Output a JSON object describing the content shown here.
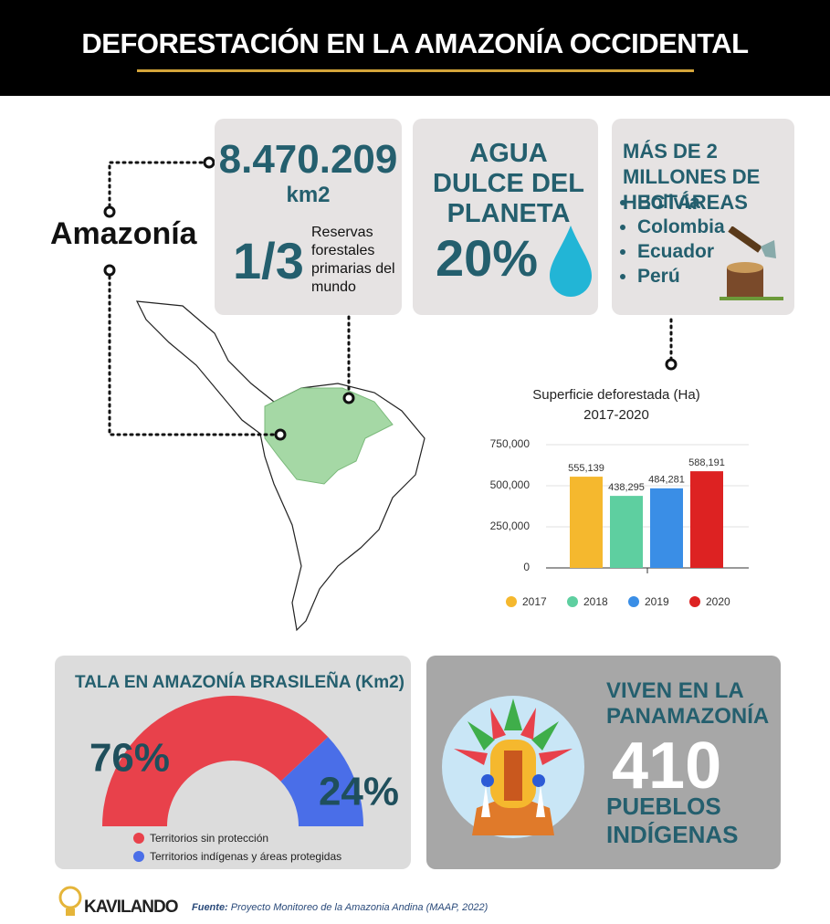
{
  "header": {
    "title": "DEFORESTACIÓN EN LA AMAZONÍA OCCIDENTAL"
  },
  "map": {
    "label": "Amazonía"
  },
  "cards": [
    {
      "figure": "8.470.209",
      "unit": "km2",
      "fraction": "1/3",
      "text": "Reservas forestales primarias del mundo"
    },
    {
      "title": "AGUA DULCE DEL PLANETA",
      "figure": "20%"
    },
    {
      "title": "MÁS DE 2 MILLONES DE HECTÁREAS",
      "items": [
        "Bolivia",
        "Colombia",
        "Ecuador",
        "Perú"
      ]
    }
  ],
  "chart_data": [
    {
      "type": "bar",
      "title": "Superficie deforestada (Ha)",
      "subtitle": "2017-2020",
      "categories": [
        "2017",
        "2018",
        "2019",
        "2020"
      ],
      "values": [
        555139,
        438295,
        484281,
        588191
      ],
      "value_labels": [
        "555,139",
        "438,295",
        "484,281",
        "588,191"
      ],
      "colors": [
        "#f5b82e",
        "#5ecfa0",
        "#3a8ee6",
        "#dd2222"
      ],
      "ylim": [
        0,
        750000
      ],
      "yticks": [
        0,
        {
          "value": 250000,
          "label": "250,000"
        },
        {
          "value": 500000,
          "label": "500,000"
        },
        {
          "value": 750000,
          "label": "750,000"
        }
      ],
      "grid": true,
      "legend": "bottom"
    },
    {
      "type": "half-donut",
      "title": "TALA EN AMAZONÍA BRASILEÑA (Km2)",
      "categories": [
        "Territorios sin protección",
        "Territorios indígenas y áreas protegidas"
      ],
      "values": [
        76,
        24
      ],
      "value_labels": [
        "76%",
        "24%"
      ],
      "colors": [
        "#e8414b",
        "#4a6ee8"
      ],
      "legend": "bottom"
    }
  ],
  "population": {
    "title": "VIVEN EN LA PANAMAZONÍA",
    "figure": "410",
    "caption": "PUEBLOS INDÍGENAS"
  },
  "footer": {
    "brand": "KAVILANDO",
    "source_label": "Fuente:",
    "source": "Proyecto Monitoreo de la Amazonia Andina (MAAP, 2022)"
  }
}
